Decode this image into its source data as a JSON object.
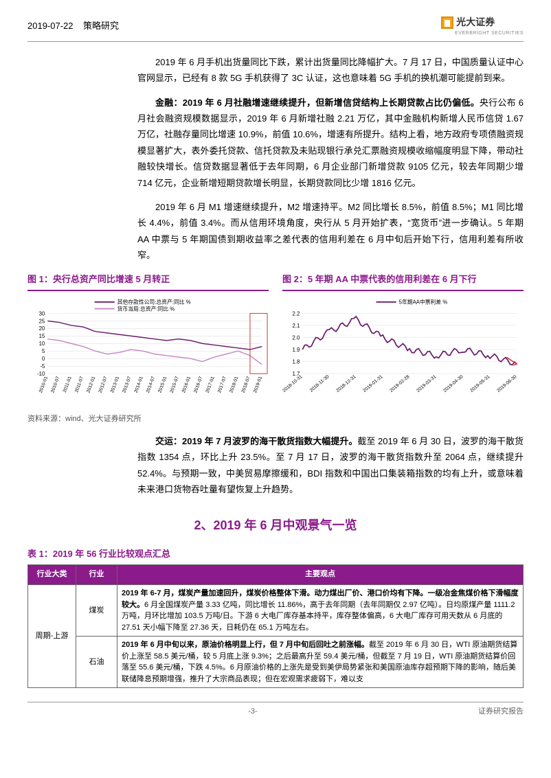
{
  "header": {
    "date": "2019-07-22",
    "category": "策略研究",
    "brand": "光大证券",
    "brand_sub": "EVERBRIGHT SECURITIES"
  },
  "paragraphs": {
    "p1": "2019 年 6 月手机出货量同比下跌，累计出货量同比降幅扩大。7 月 17 日，中国质量认证中心官网显示，已经有 8 款 5G 手机获得了 3C 认证，这也意味着 5G 手机的换机潮可能提前到来。",
    "p2_lead": "金融：2019 年 6 月社融增速继续提升，但新增信贷结构上长期贷款占比仍偏低。",
    "p2_rest": "央行公布 6 月社会融资规模数据显示，2019 年 6 月新增社融 2.21 万亿，其中金融机构新增人民币信贷 1.67 万亿，社融存量同比增速 10.9%，前值 10.6%，增速有所提升。结构上看，地方政府专项债融资规模显著扩大，表外委托贷款、信托贷款及未贴现银行承兑汇票融资规模收缩幅度明显下降，带动社融较快增长。信贷数据显著低于去年同期，6 月企业部门新增贷款 9105 亿元，较去年同期少增 714 亿元，企业新增短期贷款增长明显，长期贷款同比少增 1816 亿元。",
    "p3": "2019 年 6 月 M1 增速继续提升，M2 增速持平。M2 同比增长 8.5%，前值 8.5%；M1 同比增长 4.4%，前值 3.4%。而从信用环境角度，央行从 5 月开始扩表，“宽货币”进一步确认。5 年期 AA 中票与 5 年期国债到期收益率之差代表的信用利差在 6 月中旬后开始下行，信用利差有所收窄。",
    "p4_lead": "交运：2019 年 7 月波罗的海干散货指数大幅提升。",
    "p4_rest": "截至 2019 年 6 月 30 日，波罗的海干散货指数 1354 点，环比上升 23.5%。至 7 月 17 日，波罗的海干散货指数升至 2064 点，继续提升 52.4%。与预期一致，中美贸易摩擦缓和，BDI 指数和中国出口集装箱指数的均有上升，或意味着未来港口货物吞吐量有望恢复上升趋势。"
  },
  "chart1": {
    "title": "图 1：央行总资产同比增速 5 月转正",
    "legend": [
      "其他存款性公司:总资产:同比 %",
      "货币当局:总资产:同比 %"
    ],
    "legend_colors": [
      "#6b1f6b",
      "#c58bc5"
    ],
    "x_labels": [
      "2010-01",
      "2010-07",
      "2011-01",
      "2011-07",
      "2012-01",
      "2012-07",
      "2013-01",
      "2013-07",
      "2014-01",
      "2014-07",
      "2015-01",
      "2015-07",
      "2016-01",
      "2016-07",
      "2017-01",
      "2017-07",
      "2018-01",
      "2018-07",
      "2019-01"
    ],
    "y_ticks": [
      -10,
      -5,
      0,
      5,
      10,
      15,
      20,
      25,
      30
    ],
    "ylim": [
      -10,
      30
    ],
    "series1": [
      25,
      24,
      22,
      21,
      18,
      17,
      16,
      15,
      14,
      13,
      12,
      13,
      12,
      10,
      9,
      8,
      7,
      6,
      8
    ],
    "series2": [
      13,
      12,
      10,
      8,
      5,
      3,
      4,
      6,
      5,
      3,
      2,
      1,
      0,
      -2,
      1,
      3,
      5,
      2,
      -4
    ],
    "line_width": 1.5,
    "grid_color": "#d9d9d9",
    "background": "#ffffff",
    "source": "资料来源：wind、光大证券研究所"
  },
  "chart2": {
    "title": "图 2：5 年期 AA 中票代表的信用利差在 6 月下行",
    "legend": [
      "5年期AA中票利差 %"
    ],
    "legend_colors": [
      "#6b1f6b"
    ],
    "x_labels": [
      "2018-10-31",
      "2018-11-30",
      "2018-12-31",
      "2019-01-31",
      "2019-02-28",
      "2019-03-31",
      "2019-04-30",
      "2019-05-31",
      "2019-06-30"
    ],
    "y_ticks": [
      1.7,
      1.8,
      1.9,
      2.0,
      2.1,
      2.2
    ],
    "ylim": [
      1.7,
      2.2
    ],
    "series1": [
      1.9,
      2.05,
      2.15,
      2.0,
      1.9,
      1.85,
      1.9,
      1.85,
      1.78
    ],
    "line_width": 1.8,
    "grid_color": "#d9d9d9",
    "background": "#ffffff",
    "arrow_color": "#c33"
  },
  "section2_title": "2、2019 年 6 月中观景气一览",
  "table": {
    "title": "表 1：2019 年 56 行业比较观点汇总",
    "headers": [
      "行业大类",
      "行业",
      "主要观点"
    ],
    "rows": [
      {
        "cat": "周期-上游",
        "ind": "煤炭",
        "view_bold": "2019 年 6-7 月，煤炭产量加速回升，煤炭价格整体下滑。动力煤出厂价、港口价均有下降。一级冶金焦煤价格下滑幅度较大。",
        "view_rest": "6 月全国煤炭产量 3.33 亿吨，同比增长 11.86%，高于去年同期（去年同期仅 2.97 亿吨）。日均原煤产量 1111.2 万吨，月环比增加 103.5 万吨/日。下游 6 大电厂库存基本持平，库存整体偏高，6 大电厂库存可用天数从 6 月底的 27.51 天小幅下降至 27.36 天，日耗仍在 65.1 万吨左右。"
      },
      {
        "cat": "",
        "ind": "石油",
        "view_bold": "2019 年 6 月中旬以来，原油价格明显上行，但 7 月中旬后回吐之前涨幅。",
        "view_rest": "截至 2019 年 6 月 30 日，WTI 原油期货结算价上涨至 58.5 美元/桶，较 5 月底上涨 9.3%；之后最高升至 59.4 美元/桶，但截至 7 月 19 日，WTI 原油期货结算价回落至 55.6 美元/桶，下跌 4.5%。6 月原油价格的上涨先是受到美伊局势紧张和美国原油库存超预期下降的影响，随后美联储降息预期增强，推升了大宗商品表现；但在宏观需求疲弱下，难以支"
      }
    ]
  },
  "footer": {
    "pagenum": "-3-",
    "right": "证券研究报告"
  }
}
